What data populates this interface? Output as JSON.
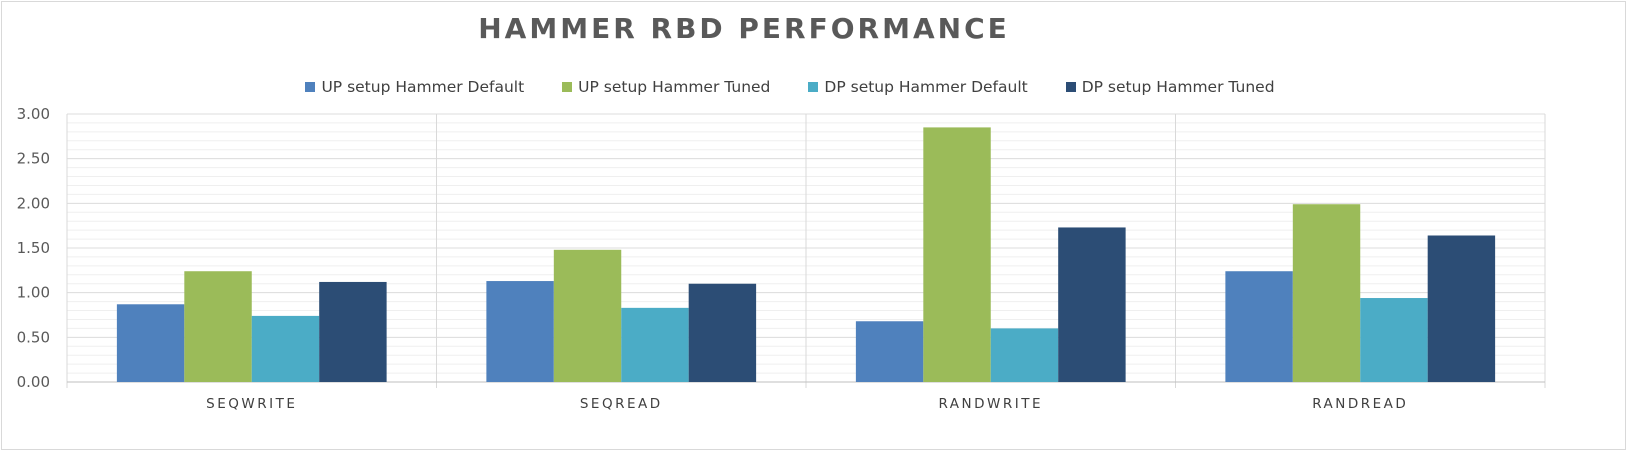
{
  "chart_data": {
    "type": "bar",
    "title": "HAMMER RBD PERFORMANCE",
    "categories": [
      "SEQWRITE",
      "SEQREAD",
      "RANDWRITE",
      "RANDREAD"
    ],
    "series": [
      {
        "name": "UP setup Hammer Default",
        "color": "#4f81bd",
        "values": [
          0.87,
          1.13,
          0.68,
          1.24
        ]
      },
      {
        "name": "UP setup Hammer Tuned",
        "color": "#9bbb59",
        "values": [
          1.24,
          1.48,
          2.85,
          1.99
        ]
      },
      {
        "name": "DP setup Hammer Default",
        "color": "#4bacc6",
        "values": [
          0.74,
          0.83,
          0.6,
          0.94
        ]
      },
      {
        "name": "DP setup Hammer Tuned",
        "color": "#2c4d75",
        "values": [
          1.12,
          1.1,
          1.73,
          1.64
        ]
      }
    ],
    "ylim": [
      0,
      3
    ],
    "yticks": [
      "0.00",
      "0.50",
      "1.00",
      "1.50",
      "2.00",
      "2.50",
      "3.00"
    ],
    "xlabel": "",
    "ylabel": "",
    "grid": true,
    "legend": "top"
  }
}
